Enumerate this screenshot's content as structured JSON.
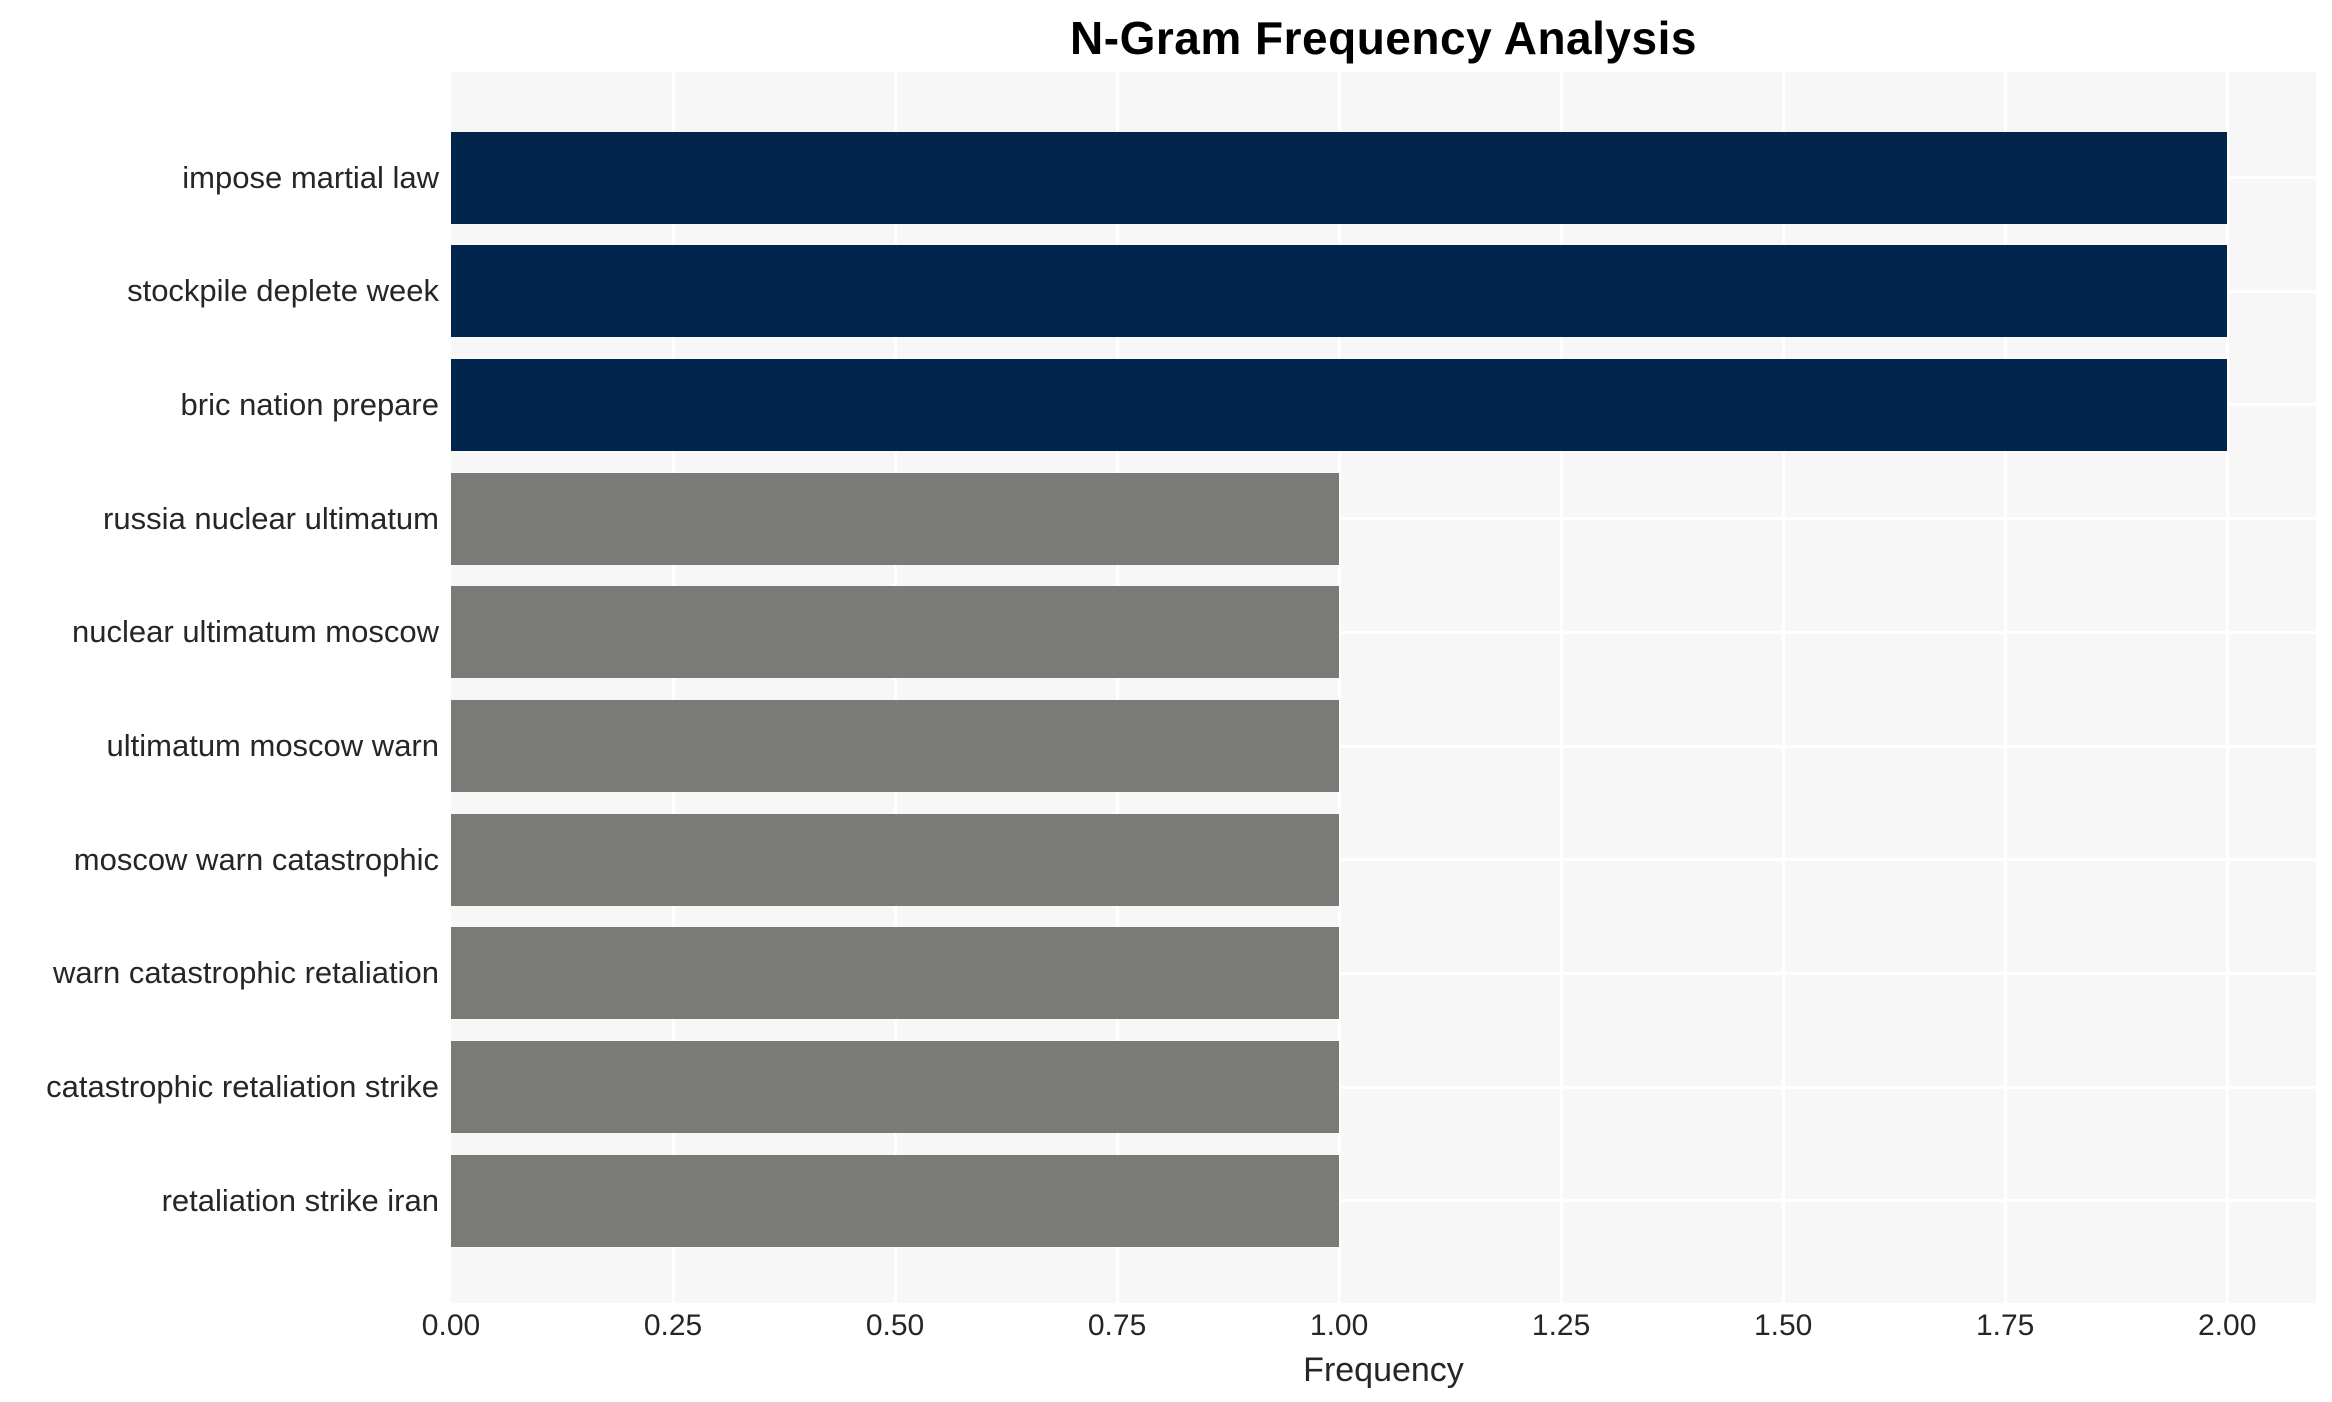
{
  "chart_data": {
    "type": "bar",
    "orientation": "horizontal",
    "title": "N-Gram Frequency Analysis",
    "xlabel": "Frequency",
    "ylabel": "",
    "categories": [
      "impose martial law",
      "stockpile deplete week",
      "bric nation prepare",
      "russia nuclear ultimatum",
      "nuclear ultimatum moscow",
      "ultimatum moscow warn",
      "moscow warn catastrophic",
      "warn catastrophic retaliation",
      "catastrophic retaliation strike",
      "retaliation strike iran"
    ],
    "values": [
      2,
      2,
      2,
      1,
      1,
      1,
      1,
      1,
      1,
      1
    ],
    "bar_colors": [
      "#02254e",
      "#02254e",
      "#02254e",
      "#7a7a76",
      "#7a7a76",
      "#7a7a76",
      "#7a7a76",
      "#7a7a76",
      "#7a7a76",
      "#7a7a76"
    ],
    "xlim": [
      0,
      2.1
    ],
    "xticks": [
      0,
      0.25,
      0.5,
      0.75,
      1,
      1.25,
      1.5,
      1.75,
      2
    ],
    "xtick_labels": [
      "0.00",
      "0.25",
      "0.50",
      "0.75",
      "1.00",
      "1.25",
      "1.50",
      "1.75",
      "2.00"
    ],
    "grid": true,
    "legend": "none",
    "colors": {
      "bar_high": "#02254e",
      "bar_low": "#7a7a76",
      "plot_background": "#f7f7f7",
      "gridline": "#ffffff",
      "tick_text": "#262626",
      "title_text": "#000000",
      "page_background": "#ffffff"
    }
  }
}
